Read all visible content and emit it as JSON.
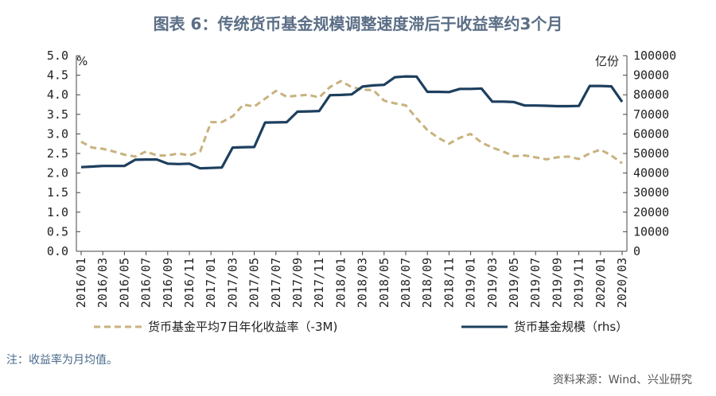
{
  "title": "图表 6：传统货币基金规模调整速度滞后于收益率约3个月",
  "footnote": "注：收益率为月均值。",
  "source": "资料来源：Wind、兴业研究",
  "chart_data": {
    "type": "line",
    "left_unit": "%",
    "right_unit": "亿份",
    "y_left_range": [
      0,
      5
    ],
    "y_right_range": [
      0,
      100000
    ],
    "y_left_ticks": [
      "0.0",
      "0.5",
      "1.0",
      "1.5",
      "2.0",
      "2.5",
      "3.0",
      "3.5",
      "4.0",
      "4.5",
      "5.0"
    ],
    "y_right_ticks": [
      "0",
      "10000",
      "20000",
      "30000",
      "40000",
      "50000",
      "60000",
      "70000",
      "80000",
      "90000",
      "100000"
    ],
    "x_tick_labels": [
      "2016/01",
      "2016/03",
      "2016/05",
      "2016/07",
      "2016/09",
      "2016/11",
      "2017/01",
      "2017/03",
      "2017/05",
      "2017/07",
      "2017/09",
      "2017/11",
      "2018/01",
      "2018/03",
      "2018/05",
      "2018/07",
      "2018/09",
      "2018/11",
      "2019/01",
      "2019/03",
      "2019/05",
      "2019/07",
      "2019/09",
      "2019/11",
      "2020/01",
      "2020/03"
    ],
    "x": [
      "2016/01",
      "2016/02",
      "2016/03",
      "2016/04",
      "2016/05",
      "2016/06",
      "2016/07",
      "2016/08",
      "2016/09",
      "2016/10",
      "2016/11",
      "2016/12",
      "2017/01",
      "2017/02",
      "2017/03",
      "2017/04",
      "2017/05",
      "2017/06",
      "2017/07",
      "2017/08",
      "2017/09",
      "2017/10",
      "2017/11",
      "2017/12",
      "2018/01",
      "2018/02",
      "2018/03",
      "2018/04",
      "2018/05",
      "2018/06",
      "2018/07",
      "2018/08",
      "2018/09",
      "2018/10",
      "2018/11",
      "2018/12",
      "2019/01",
      "2019/02",
      "2019/03",
      "2019/04",
      "2019/05",
      "2019/06",
      "2019/07",
      "2019/08",
      "2019/09",
      "2019/10",
      "2019/11",
      "2019/12",
      "2020/01",
      "2020/02",
      "2020/03"
    ],
    "series": [
      {
        "name": "货币基金平均7日年化收益率（-3M)",
        "axis": "left",
        "style": "dashed",
        "color": "#c8b27e",
        "values": [
          2.8,
          2.65,
          2.62,
          2.55,
          2.47,
          2.42,
          2.55,
          2.45,
          2.45,
          2.5,
          2.45,
          2.55,
          3.3,
          3.3,
          3.45,
          3.75,
          3.7,
          3.9,
          4.1,
          3.95,
          3.98,
          4.0,
          3.93,
          4.2,
          4.35,
          4.2,
          4.13,
          4.12,
          3.85,
          3.78,
          3.73,
          3.4,
          3.1,
          2.9,
          2.75,
          2.9,
          3.0,
          2.78,
          2.65,
          2.55,
          2.43,
          2.45,
          2.4,
          2.35,
          2.4,
          2.42,
          2.36,
          2.5,
          2.6,
          2.45,
          2.25
        ]
      },
      {
        "name": "货币基金规模（rhs）",
        "axis": "right",
        "style": "solid",
        "color": "#1d3f5e",
        "values": [
          43000,
          43300,
          43600,
          43600,
          43600,
          46800,
          46900,
          46900,
          44800,
          44600,
          44800,
          42400,
          42600,
          42800,
          53000,
          53200,
          53300,
          65800,
          65900,
          66000,
          71400,
          71500,
          71700,
          79800,
          79900,
          80200,
          84200,
          84800,
          85100,
          89000,
          89400,
          89300,
          81500,
          81500,
          81400,
          83000,
          83000,
          83200,
          76500,
          76500,
          76300,
          74500,
          74500,
          74400,
          74200,
          74200,
          74300,
          84500,
          84500,
          84300,
          76400
        ]
      }
    ],
    "legend_position": "bottom"
  }
}
